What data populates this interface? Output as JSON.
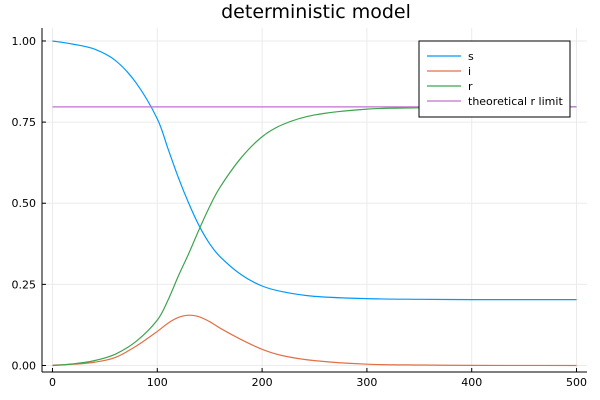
{
  "chart_data": {
    "type": "line",
    "title": "deterministic model",
    "xlabel": "",
    "ylabel": "",
    "xlim": [
      -10,
      510
    ],
    "ylim": [
      -0.02,
      1.04
    ],
    "x_ticks": [
      0,
      100,
      200,
      300,
      400,
      500
    ],
    "x_tick_labels": [
      "0",
      "100",
      "200",
      "300",
      "400",
      "500"
    ],
    "y_ticks": [
      0,
      0.25,
      0.5,
      0.75,
      1.0
    ],
    "y_tick_labels": [
      "0.00",
      "0.25",
      "0.50",
      "0.75",
      "1.00"
    ],
    "grid": true,
    "legend_position": "top-right",
    "x": [
      0,
      20,
      40,
      60,
      80,
      100,
      110,
      120,
      130,
      140,
      150,
      160,
      180,
      200,
      220,
      250,
      300,
      350,
      400,
      450,
      500
    ],
    "series": [
      {
        "name": "s",
        "color": "#009AFA",
        "values": [
          1.0,
          0.99,
          0.975,
          0.94,
          0.87,
          0.76,
          0.67,
          0.58,
          0.5,
          0.43,
          0.375,
          0.335,
          0.28,
          0.245,
          0.227,
          0.213,
          0.206,
          0.204,
          0.203,
          0.203,
          0.203
        ]
      },
      {
        "name": "i",
        "color": "#E36F47",
        "values": [
          0.001,
          0.004,
          0.01,
          0.025,
          0.06,
          0.105,
          0.13,
          0.148,
          0.155,
          0.15,
          0.135,
          0.115,
          0.08,
          0.05,
          0.03,
          0.015,
          0.004,
          0.0015,
          0.0005,
          0.0002,
          0.0001
        ]
      },
      {
        "name": "r",
        "color": "#3EA44E",
        "values": [
          0.0,
          0.005,
          0.015,
          0.035,
          0.075,
          0.14,
          0.2,
          0.275,
          0.345,
          0.42,
          0.49,
          0.55,
          0.64,
          0.705,
          0.743,
          0.772,
          0.79,
          0.794,
          0.796,
          0.797,
          0.797
        ]
      },
      {
        "name": "theoretical r limit",
        "color": "#C271D2",
        "values": [
          0.797,
          0.797,
          0.797,
          0.797,
          0.797,
          0.797,
          0.797,
          0.797,
          0.797,
          0.797,
          0.797,
          0.797,
          0.797,
          0.797,
          0.797,
          0.797,
          0.797,
          0.797,
          0.797,
          0.797,
          0.797
        ]
      }
    ]
  }
}
